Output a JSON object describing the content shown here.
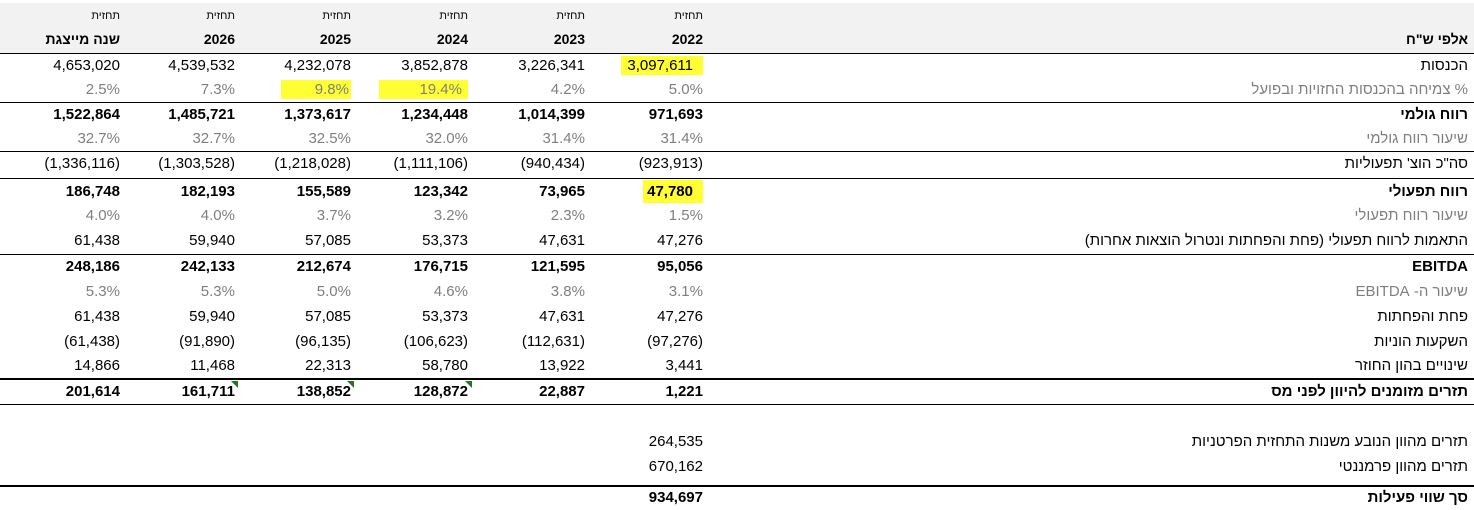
{
  "columns": [
    {
      "small": "תחזית",
      "big": "שנה מייצגת"
    },
    {
      "small": "תחזית",
      "big": "2026"
    },
    {
      "small": "תחזית",
      "big": "2025"
    },
    {
      "small": "תחזית",
      "big": "2024"
    },
    {
      "small": "תחזית",
      "big": "2023"
    },
    {
      "small": "תחזית",
      "big": "2022"
    }
  ],
  "header_label": "אלפי ש\"ח",
  "rows": [
    {
      "label": "הכנסות",
      "values": [
        "4,653,020",
        "4,539,532",
        "4,232,078",
        "3,852,878",
        "3,226,341",
        "3,097,611"
      ]
    },
    {
      "label": "% צמיחה בהכנסות החזויות ובפועל",
      "values": [
        "2.5%",
        "7.3%",
        "9.8%",
        "19.4%",
        "4.2%",
        "5.0%"
      ]
    },
    {
      "label": "רווח גולמי",
      "values": [
        "1,522,864",
        "1,485,721",
        "1,373,617",
        "1,234,448",
        "1,014,399",
        "971,693"
      ]
    },
    {
      "label": "שיעור רווח גולמי",
      "values": [
        "32.7%",
        "32.7%",
        "32.5%",
        "32.0%",
        "31.4%",
        "31.4%"
      ]
    },
    {
      "label": "סה\"כ הוצ' תפעוליות",
      "values": [
        "(1,336,116)",
        "(1,303,528)",
        "(1,218,028)",
        "(1,111,106)",
        "(940,434)",
        "(923,913)"
      ]
    },
    {
      "label": "רווח תפעולי",
      "values": [
        "186,748",
        "182,193",
        "155,589",
        "123,342",
        "73,965",
        "47,780"
      ]
    },
    {
      "label": "שיעור רווח תפעולי",
      "values": [
        "4.0%",
        "4.0%",
        "3.7%",
        "3.2%",
        "2.3%",
        "1.5%"
      ]
    },
    {
      "label": "התאמות לרווח תפעולי (פחת והפחתות ונטרול הוצאות אחרות)",
      "values": [
        "61,438",
        "59,940",
        "57,085",
        "53,373",
        "47,631",
        "47,276"
      ]
    },
    {
      "label": "EBITDA",
      "values": [
        "248,186",
        "242,133",
        "212,674",
        "176,715",
        "121,595",
        "95,056"
      ]
    },
    {
      "label": "שיעור ה- EBITDA",
      "values": [
        "5.3%",
        "5.3%",
        "5.0%",
        "4.6%",
        "3.8%",
        "3.1%"
      ]
    },
    {
      "label": "פחת והפחתות",
      "values": [
        "61,438",
        "59,940",
        "57,085",
        "53,373",
        "47,631",
        "47,276"
      ]
    },
    {
      "label": "השקעות הוניות",
      "values": [
        "(61,438)",
        "(91,890)",
        "(96,135)",
        "(106,623)",
        "(112,631)",
        "(97,276)"
      ]
    },
    {
      "label": "שינויים בהון החוזר",
      "values": [
        "14,866",
        "11,468",
        "22,313",
        "58,780",
        "13,922",
        "3,441"
      ]
    },
    {
      "label": "תזרים מזומנים להיוון לפני מס",
      "values": [
        "201,614",
        "161,711",
        "138,852",
        "128,872",
        "22,887",
        "1,221"
      ]
    }
  ],
  "summary": [
    {
      "label": "תזרים מהוון הנובע משנות התחזית הפרטניות",
      "value": "264,535"
    },
    {
      "label": "תזרים מהוון פרמננטי",
      "value": "670,162"
    },
    {
      "label": "סך שווי פעילות",
      "value": "934,697"
    }
  ],
  "highlight_color": "#ffff33"
}
